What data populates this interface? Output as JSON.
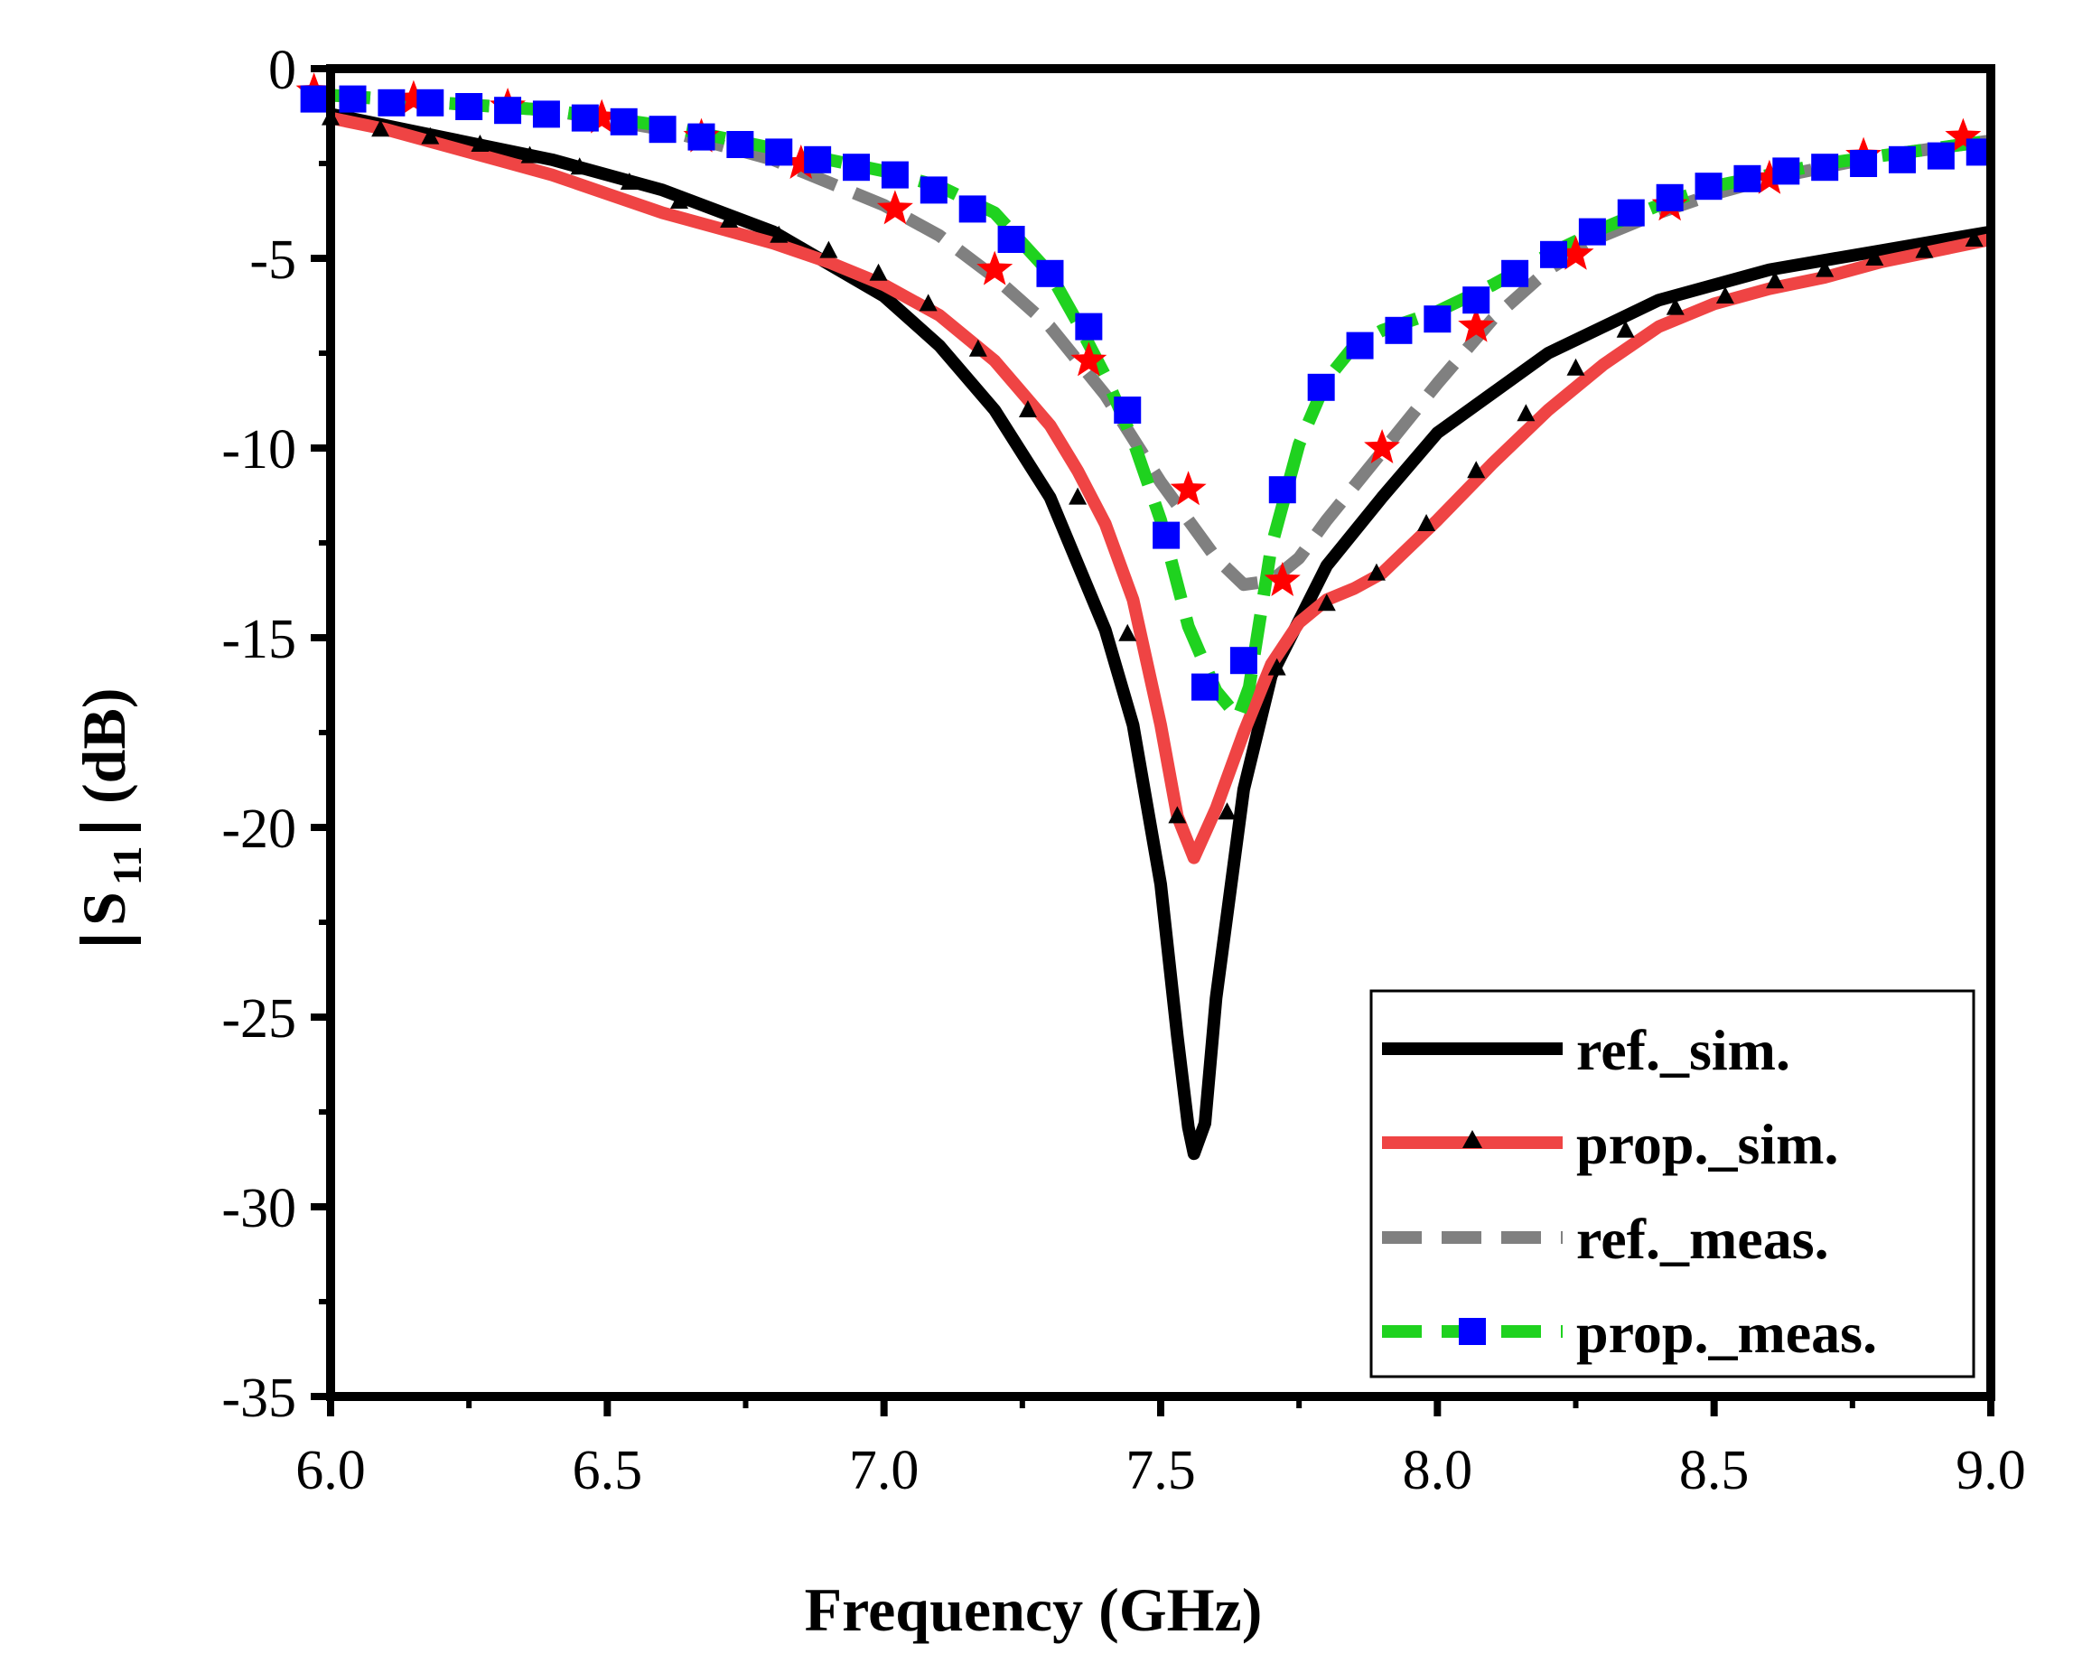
{
  "chart_data": {
    "type": "line",
    "title": "",
    "xlabel": "Frequency (GHz)",
    "ylabel": {
      "main": "S",
      "sub": "11",
      "unit": "(dB)"
    },
    "xlim": [
      6.0,
      9.0
    ],
    "ylim": [
      -35,
      0
    ],
    "xticks": [
      6.0,
      6.5,
      7.0,
      7.5,
      8.0,
      8.5,
      9.0
    ],
    "xtick_labels": [
      "6.0",
      "6.5",
      "7.0",
      "7.5",
      "8.0",
      "8.5",
      "9.0"
    ],
    "yticks": [
      0,
      -5,
      -10,
      -15,
      -20,
      -25,
      -30,
      -35
    ],
    "ytick_labels": [
      "0",
      "-5",
      "-10",
      "-15",
      "-20",
      "-25",
      "-30",
      "-35"
    ],
    "legend_position": "bottom-right",
    "series": [
      {
        "name": "ref._sim.",
        "color": "#000000",
        "style": "solid",
        "marker": null,
        "x": [
          6.0,
          6.2,
          6.4,
          6.6,
          6.8,
          7.0,
          7.1,
          7.2,
          7.3,
          7.4,
          7.45,
          7.5,
          7.53,
          7.55,
          7.56,
          7.58,
          7.6,
          7.65,
          7.7,
          7.8,
          7.9,
          8.0,
          8.2,
          8.4,
          8.6,
          8.8,
          9.0
        ],
        "y": [
          -1.2,
          -1.8,
          -2.4,
          -3.2,
          -4.3,
          -6.0,
          -7.3,
          -9.0,
          -11.3,
          -14.8,
          -17.3,
          -21.5,
          -25.5,
          -27.9,
          -28.6,
          -27.8,
          -24.5,
          -19.0,
          -16.0,
          -13.1,
          -11.3,
          -9.6,
          -7.5,
          -6.1,
          -5.3,
          -4.8,
          -4.3
        ]
      },
      {
        "name": "prop._sim.",
        "color": "#ef4444",
        "style": "solid",
        "marker": "triangle",
        "marker_color": "#000000",
        "x": [
          6.0,
          6.1,
          6.2,
          6.3,
          6.4,
          6.5,
          6.6,
          6.7,
          6.8,
          6.9,
          7.0,
          7.1,
          7.2,
          7.3,
          7.35,
          7.4,
          7.45,
          7.5,
          7.53,
          7.56,
          7.6,
          7.65,
          7.7,
          7.75,
          7.8,
          7.85,
          7.9,
          8.0,
          8.1,
          8.2,
          8.3,
          8.4,
          8.5,
          8.6,
          8.7,
          8.8,
          8.9,
          9.0
        ],
        "y": [
          -1.3,
          -1.6,
          -2.0,
          -2.4,
          -2.8,
          -3.3,
          -3.8,
          -4.2,
          -4.6,
          -5.1,
          -5.7,
          -6.5,
          -7.7,
          -9.4,
          -10.6,
          -12.0,
          -14.0,
          -17.3,
          -19.7,
          -20.8,
          -19.5,
          -17.5,
          -15.7,
          -14.6,
          -14.0,
          -13.7,
          -13.3,
          -11.9,
          -10.4,
          -9.0,
          -7.8,
          -6.8,
          -6.2,
          -5.8,
          -5.5,
          -5.1,
          -4.8,
          -4.5
        ],
        "marker_x": [
          6.0,
          6.09,
          6.18,
          6.27,
          6.36,
          6.45,
          6.54,
          6.63,
          6.72,
          6.81,
          6.9,
          6.99,
          7.08,
          7.17,
          7.26,
          7.35,
          7.44,
          7.53,
          7.62,
          7.71,
          7.8,
          7.89,
          7.98,
          8.07,
          8.16,
          8.25,
          8.34,
          8.43,
          8.52,
          8.61,
          8.7,
          8.79,
          8.88,
          8.97
        ],
        "marker_y": [
          -1.3,
          -1.6,
          -1.8,
          -2.0,
          -2.3,
          -2.6,
          -3.0,
          -3.5,
          -4.0,
          -4.4,
          -4.8,
          -5.4,
          -6.2,
          -7.4,
          -9.0,
          -11.3,
          -14.9,
          -19.7,
          -19.6,
          -15.8,
          -14.1,
          -13.3,
          -12.0,
          -10.6,
          -9.1,
          -7.9,
          -6.9,
          -6.3,
          -6.0,
          -5.6,
          -5.3,
          -5.0,
          -4.8,
          -4.5
        ]
      },
      {
        "name": "ref._meas.",
        "color": "#808080",
        "style": "dashed",
        "marker": "star",
        "marker_color": "#ff0000",
        "x": [
          6.0,
          6.2,
          6.4,
          6.6,
          6.8,
          7.0,
          7.1,
          7.2,
          7.3,
          7.4,
          7.5,
          7.6,
          7.65,
          7.7,
          7.75,
          7.8,
          7.9,
          8.0,
          8.1,
          8.2,
          8.3,
          8.4,
          8.5,
          8.6,
          8.7,
          8.8,
          8.9,
          9.0
        ],
        "y": [
          -0.7,
          -0.9,
          -1.1,
          -1.6,
          -2.4,
          -3.6,
          -4.4,
          -5.5,
          -6.8,
          -8.6,
          -10.9,
          -12.9,
          -13.6,
          -13.5,
          -12.9,
          -11.9,
          -10.1,
          -8.3,
          -6.6,
          -5.3,
          -4.4,
          -3.8,
          -3.3,
          -2.9,
          -2.6,
          -2.3,
          -2.1,
          -1.9
        ],
        "marker_x": [
          5.97,
          6.15,
          6.32,
          6.49,
          6.67,
          6.85,
          7.02,
          7.2,
          7.37,
          7.55,
          7.72,
          7.9,
          8.07,
          8.25,
          8.42,
          8.6,
          8.77,
          8.95
        ],
        "marker_y": [
          -0.6,
          -0.8,
          -1.0,
          -1.3,
          -1.8,
          -2.5,
          -3.7,
          -5.3,
          -7.7,
          -11.1,
          -13.5,
          -10.0,
          -6.8,
          -4.9,
          -3.6,
          -2.9,
          -2.3,
          -1.8
        ]
      },
      {
        "name": "prop._meas.",
        "color": "#1fd21f",
        "style": "dashed",
        "marker": "square",
        "marker_color": "#0000ff",
        "x": [
          6.0,
          6.2,
          6.4,
          6.6,
          6.8,
          7.0,
          7.1,
          7.2,
          7.3,
          7.35,
          7.4,
          7.45,
          7.5,
          7.55,
          7.6,
          7.64,
          7.66,
          7.7,
          7.75,
          7.8,
          7.85,
          7.9,
          8.0,
          8.1,
          8.2,
          8.3,
          8.4,
          8.5,
          8.6,
          8.7,
          8.8,
          8.9,
          9.0
        ],
        "y": [
          -0.7,
          -0.9,
          -1.1,
          -1.5,
          -2.1,
          -2.7,
          -3.1,
          -3.8,
          -5.4,
          -6.7,
          -8.1,
          -9.8,
          -11.9,
          -14.7,
          -16.4,
          -17.1,
          -16.3,
          -12.6,
          -9.9,
          -8.2,
          -7.3,
          -6.9,
          -6.4,
          -5.7,
          -4.9,
          -4.2,
          -3.6,
          -3.1,
          -2.8,
          -2.5,
          -2.3,
          -2.1,
          -1.9
        ],
        "marker_x": [
          5.97,
          6.04,
          6.11,
          6.18,
          6.25,
          6.32,
          6.39,
          6.46,
          6.53,
          6.6,
          6.67,
          6.74,
          6.81,
          6.88,
          6.95,
          7.02,
          7.09,
          7.16,
          7.23,
          7.3,
          7.37,
          7.44,
          7.51,
          7.58,
          7.65,
          7.72,
          7.79,
          7.86,
          7.93,
          8.0,
          8.07,
          8.14,
          8.21,
          8.28,
          8.35,
          8.42,
          8.49,
          8.56,
          8.63,
          8.7,
          8.77,
          8.84,
          8.91,
          8.98
        ],
        "marker_y": [
          -0.8,
          -0.8,
          -0.9,
          -0.9,
          -1.0,
          -1.1,
          -1.2,
          -1.3,
          -1.4,
          -1.6,
          -1.8,
          -2.0,
          -2.2,
          -2.4,
          -2.6,
          -2.8,
          -3.2,
          -3.7,
          -4.5,
          -5.4,
          -6.8,
          -9.0,
          -12.3,
          -16.3,
          -15.6,
          -11.1,
          -8.4,
          -7.3,
          -6.9,
          -6.6,
          -6.1,
          -5.4,
          -4.9,
          -4.3,
          -3.8,
          -3.4,
          -3.1,
          -2.9,
          -2.7,
          -2.6,
          -2.5,
          -2.4,
          -2.3,
          -2.2
        ]
      }
    ]
  }
}
